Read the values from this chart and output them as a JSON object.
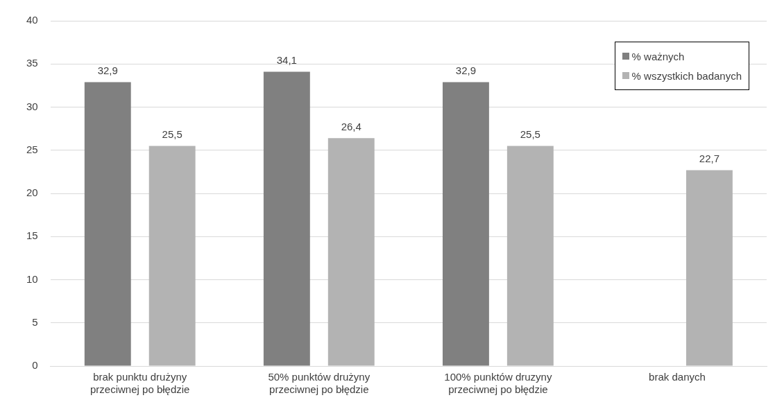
{
  "chart_data": {
    "type": "bar",
    "categories": [
      "brak punktu drużyny przeciwnej po błędzie",
      "50% punktów drużyny przeciwnej po błędzie",
      "100% punktów druzyny przeciwnej po błędzie",
      "brak danych"
    ],
    "series": [
      {
        "name": "% ważnych",
        "color": "#808080",
        "values": [
          32.9,
          34.1,
          32.9,
          null
        ],
        "value_labels": [
          "32,9",
          "34,1",
          "32,9",
          null
        ]
      },
      {
        "name": "% wszystkich badanych",
        "color": "#b3b3b3",
        "values": [
          25.5,
          26.4,
          25.5,
          22.7
        ],
        "value_labels": [
          "25,5",
          "26,4",
          "25,5",
          "22,7"
        ]
      }
    ],
    "ylim": [
      0,
      40
    ],
    "yticks": [
      0,
      5,
      10,
      15,
      20,
      25,
      30,
      35,
      40
    ],
    "grid": "y",
    "legend": "top right"
  }
}
